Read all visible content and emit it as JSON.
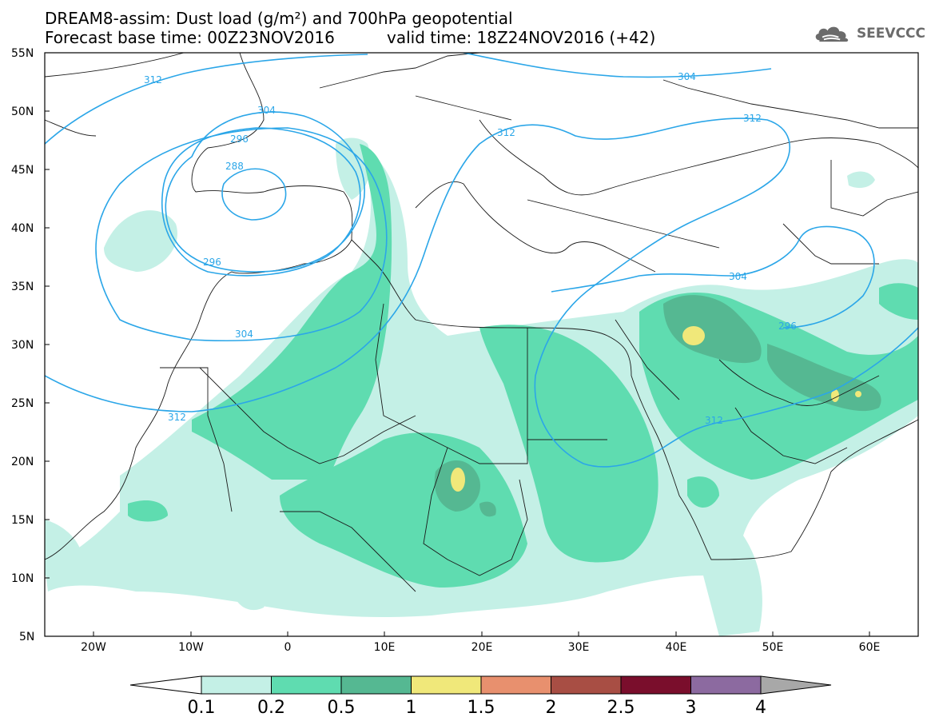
{
  "header": {
    "title_line1": "DREAM8-assim: Dust load (g/m²) and 700hPa geopotential",
    "title_line2_left": "Forecast base time: 00Z23NOV2016",
    "title_line2_right": "valid time: 18Z24NOV2016 (+42)"
  },
  "logo": {
    "text": "SEEVCCC",
    "icon": "cloud-icon"
  },
  "map": {
    "lat_labels": [
      "55N",
      "50N",
      "45N",
      "40N",
      "35N",
      "30N",
      "25N",
      "20N",
      "15N",
      "10N",
      "5N"
    ],
    "lon_labels": [
      "20W",
      "10W",
      "0",
      "10E",
      "20E",
      "30E",
      "40E",
      "50E",
      "60E"
    ],
    "contour_labels": [
      "312",
      "304",
      "296",
      "288",
      "296",
      "304",
      "312",
      "312",
      "312",
      "304",
      "304",
      "312",
      "296"
    ]
  },
  "colorbar": {
    "ticks": [
      "0.1",
      "0.2",
      "0.5",
      "1",
      "1.5",
      "2",
      "2.5",
      "3",
      "4"
    ],
    "colors": [
      "#c4f0e6",
      "#5fdcb0",
      "#55b892",
      "#f0e87a",
      "#e8906e",
      "#a84e44",
      "#7a0e2c",
      "#8c6aa0",
      "#a8a8a8"
    ]
  },
  "palette": {
    "dust_light": "#c4f0e6",
    "dust_medium": "#5fdcb0",
    "dust_dark": "#55b892",
    "dust_yellow": "#f0e87a",
    "contour": "#2ba6e8"
  }
}
